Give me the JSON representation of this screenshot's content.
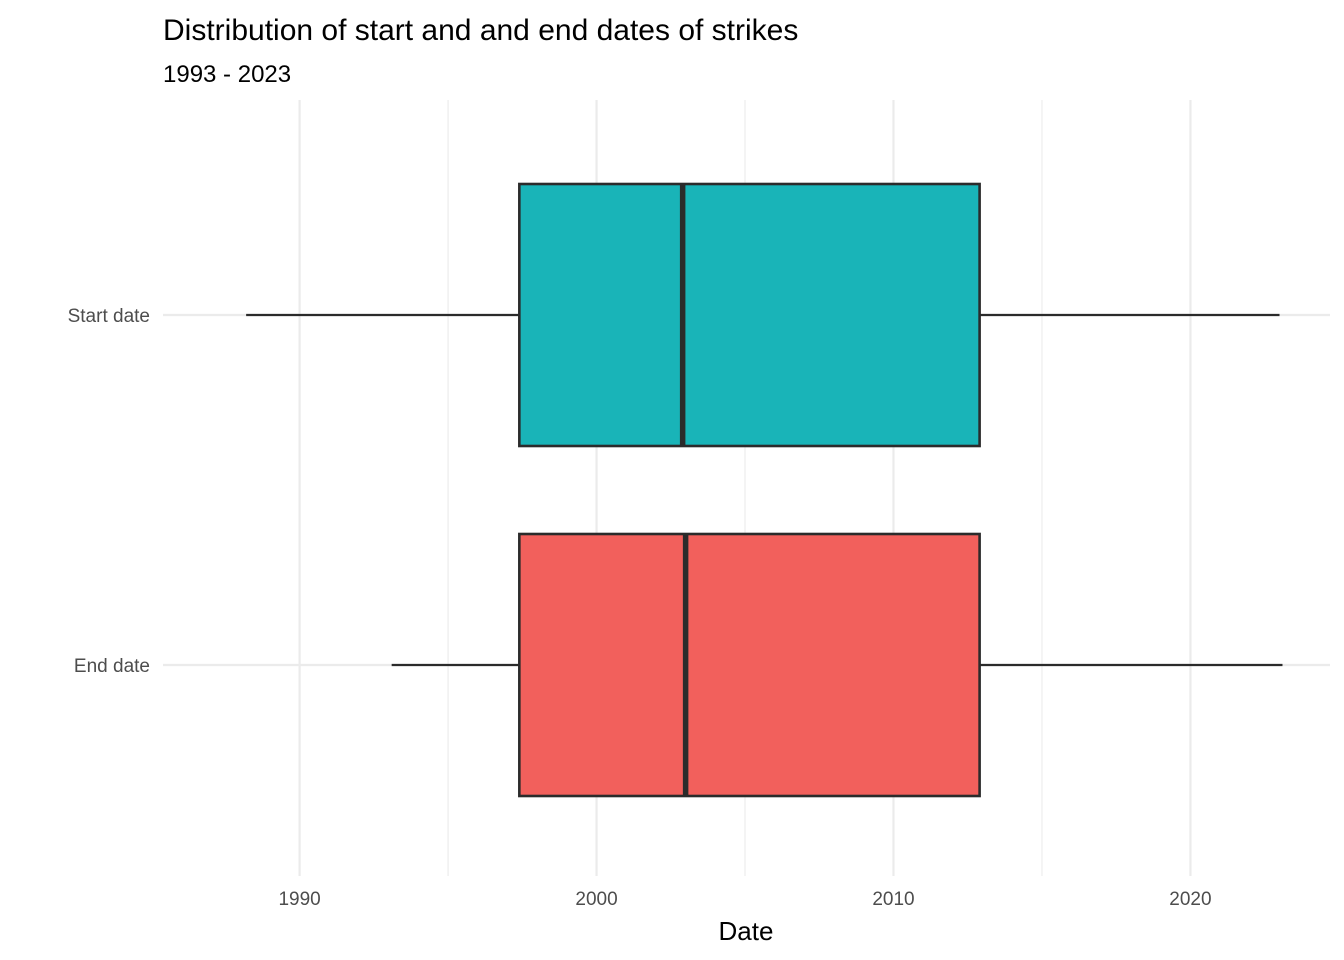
{
  "chart_data": {
    "type": "boxplot",
    "title": "Distribution of start and and end dates of strikes",
    "subtitle": "1993 - 2023",
    "xlabel": "Date",
    "ylabel": "",
    "xlim": [
      1985.4,
      2024.7
    ],
    "x_ticks": [
      1990,
      2000,
      2010,
      2020
    ],
    "x_tick_labels": [
      "1990",
      "2000",
      "2010",
      "2020"
    ],
    "x_minor_ticks": [
      1995,
      2005,
      2015
    ],
    "grid": true,
    "legend": "none",
    "categories": [
      "Start date",
      "End date"
    ],
    "series": [
      {
        "category": "Start date",
        "color": "#19b4b8",
        "whisker_low": 1988.2,
        "q1": 1997.4,
        "median": 2002.9,
        "q3": 2012.9,
        "whisker_high": 2023.0
      },
      {
        "category": "End date",
        "color": "#f2605c",
        "whisker_low": 1993.1,
        "q1": 1997.4,
        "median": 2003.0,
        "q3": 2012.9,
        "whisker_high": 2023.1
      }
    ]
  }
}
